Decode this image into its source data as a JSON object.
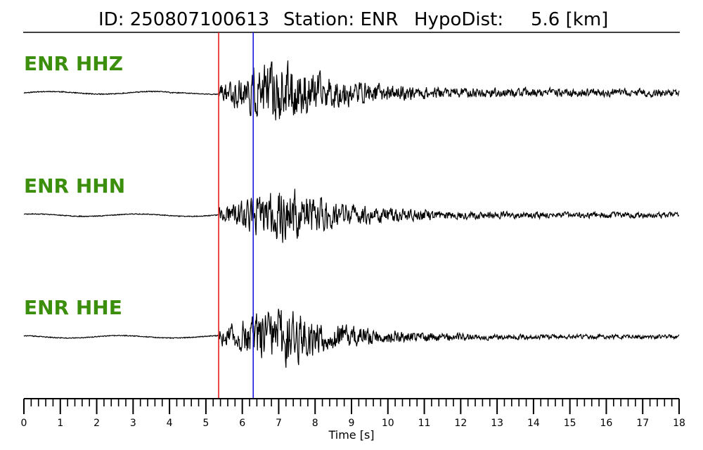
{
  "chart_data": {
    "type": "line",
    "title": {
      "id": "ID: 250807100613",
      "station": "Station: ENR",
      "hypodist_label": "HypoDist:",
      "hypodist_value": "5.6 [km]"
    },
    "xlabel": "Time [s]",
    "xlim": [
      0,
      18
    ],
    "x_ticks": [
      "0",
      "1",
      "2",
      "3",
      "4",
      "5",
      "6",
      "7",
      "8",
      "9",
      "10",
      "11",
      "12",
      "13",
      "14",
      "15",
      "16",
      "17",
      "18"
    ],
    "minor_tick_step": 0.2,
    "picks": [
      {
        "phase": "P",
        "time": 5.35,
        "color": "#e8191c"
      },
      {
        "phase": "S",
        "time": 6.3,
        "color": "#1a1adf"
      }
    ],
    "series": [
      {
        "name": "ENR HHZ",
        "label_color": "#3c8f0c",
        "trace_color": "#000000",
        "onset": 5.35,
        "peak_amplitude": 1.0,
        "peak_time": 7.0,
        "coda_level": 0.12,
        "seed": 11
      },
      {
        "name": "ENR HHN",
        "label_color": "#3c8f0c",
        "trace_color": "#000000",
        "onset": 5.35,
        "peak_amplitude": 0.95,
        "peak_time": 7.3,
        "coda_level": 0.1,
        "seed": 23
      },
      {
        "name": "ENR HHE",
        "label_color": "#3c8f0c",
        "trace_color": "#000000",
        "onset": 5.35,
        "peak_amplitude": 1.0,
        "peak_time": 7.1,
        "coda_level": 0.07,
        "seed": 37
      }
    ],
    "grid": false,
    "legend": "none"
  }
}
